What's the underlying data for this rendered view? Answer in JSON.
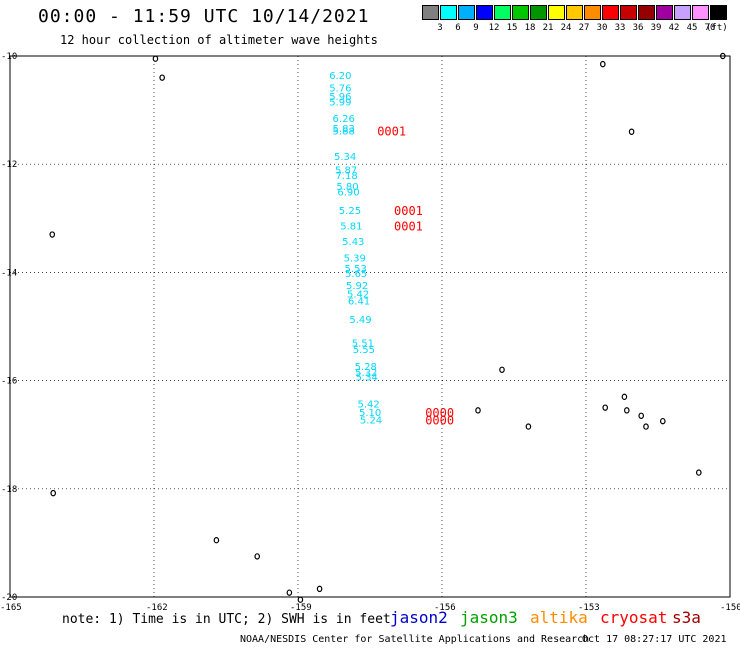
{
  "title": "00:00 - 11:59 UTC 10/14/2021",
  "subtitle": "12 hour collection of altimeter wave heights",
  "scale": {
    "unit": "(ft)",
    "colors": [
      "#808080",
      "#00ffff",
      "#00b0ff",
      "#0000ff",
      "#00ff60",
      "#00c800",
      "#009600",
      "#ffff00",
      "#ffc800",
      "#ff8c00",
      "#ff0000",
      "#c80000",
      "#960000",
      "#a000a0",
      "#c8a0ff",
      "#ff90ff",
      "#000000"
    ],
    "labels": [
      "3",
      "6",
      "9",
      "12",
      "15",
      "18",
      "21",
      "24",
      "27",
      "30",
      "33",
      "36",
      "39",
      "42",
      "45",
      "70"
    ]
  },
  "map": {
    "lon_range": [
      -165,
      -150
    ],
    "lat_range": [
      -20,
      -10
    ],
    "lat_ticks": [
      "-10",
      "-12",
      "-14",
      "-16",
      "-18",
      "-20"
    ],
    "lon_ticks": [
      "-165",
      "-162",
      "-159",
      "-156",
      "-153",
      "-150"
    ],
    "cyan_color": "#00d8ff",
    "red_color": "#ff0000",
    "observations": [
      {
        "v": "6.20",
        "lon": -158.35,
        "lat": -10.35
      },
      {
        "v": "5.76",
        "lon": -158.35,
        "lat": -10.58
      },
      {
        "v": "5.96",
        "lon": -158.35,
        "lat": -10.74
      },
      {
        "v": "5.99",
        "lon": -158.35,
        "lat": -10.84
      },
      {
        "v": "6.26",
        "lon": -158.28,
        "lat": -11.15
      },
      {
        "v": "5.83",
        "lon": -158.28,
        "lat": -11.33
      },
      {
        "v": "5.88",
        "lon": -158.28,
        "lat": -11.38
      },
      {
        "v": "5.34",
        "lon": -158.25,
        "lat": -11.85
      },
      {
        "v": "5.87",
        "lon": -158.23,
        "lat": -12.1
      },
      {
        "v": "7.18",
        "lon": -158.22,
        "lat": -12.2
      },
      {
        "v": "5.80",
        "lon": -158.2,
        "lat": -12.4
      },
      {
        "v": "6.90",
        "lon": -158.18,
        "lat": -12.5
      },
      {
        "v": "5.25",
        "lon": -158.15,
        "lat": -12.85
      },
      {
        "v": "5.81",
        "lon": -158.12,
        "lat": -13.13
      },
      {
        "v": "5.43",
        "lon": -158.08,
        "lat": -13.42
      },
      {
        "v": "5.39",
        "lon": -158.05,
        "lat": -13.72
      },
      {
        "v": "5.53",
        "lon": -158.03,
        "lat": -13.92
      },
      {
        "v": "5.65",
        "lon": -158.02,
        "lat": -14.01
      },
      {
        "v": "5.92",
        "lon": -158.0,
        "lat": -14.23
      },
      {
        "v": "5.42",
        "lon": -157.98,
        "lat": -14.39
      },
      {
        "v": "6.41",
        "lon": -157.96,
        "lat": -14.52
      },
      {
        "v": "5.49",
        "lon": -157.93,
        "lat": -14.86
      },
      {
        "v": "5.51",
        "lon": -157.88,
        "lat": -15.3
      },
      {
        "v": "5.55",
        "lon": -157.86,
        "lat": -15.42
      },
      {
        "v": "5.28",
        "lon": -157.82,
        "lat": -15.73
      },
      {
        "v": "5.32",
        "lon": -157.81,
        "lat": -15.84
      },
      {
        "v": "5.34",
        "lon": -157.8,
        "lat": -15.92
      },
      {
        "v": "5.42",
        "lon": -157.76,
        "lat": -16.42
      },
      {
        "v": "5.10",
        "lon": -157.73,
        "lat": -16.58
      },
      {
        "v": "5.24",
        "lon": -157.71,
        "lat": -16.72
      }
    ],
    "flags": [
      {
        "v": "0001",
        "lon": -157.35,
        "lat": -11.38
      },
      {
        "v": "0001",
        "lon": -157.0,
        "lat": -12.85
      },
      {
        "v": "0001",
        "lon": -157.0,
        "lat": -13.13
      },
      {
        "v": "0000",
        "lon": -156.35,
        "lat": -16.58
      },
      {
        "v": "0000",
        "lon": -156.35,
        "lat": -16.72
      }
    ],
    "islands": [
      {
        "lon": -161.97,
        "lat": -10.05
      },
      {
        "lon": -161.83,
        "lat": -10.4
      },
      {
        "lon": -164.12,
        "lat": -13.3
      },
      {
        "lon": -164.1,
        "lat": -18.08
      },
      {
        "lon": -160.7,
        "lat": -18.95
      },
      {
        "lon": -159.85,
        "lat": -19.25
      },
      {
        "lon": -159.18,
        "lat": -19.92
      },
      {
        "lon": -158.95,
        "lat": -20.05
      },
      {
        "lon": -158.55,
        "lat": -19.85
      },
      {
        "lon": -154.75,
        "lat": -15.8
      },
      {
        "lon": -155.25,
        "lat": -16.55
      },
      {
        "lon": -154.2,
        "lat": -16.85
      },
      {
        "lon": -152.65,
        "lat": -10.15
      },
      {
        "lon": -152.05,
        "lat": -11.4
      },
      {
        "lon": -152.2,
        "lat": -16.3
      },
      {
        "lon": -152.6,
        "lat": -16.5
      },
      {
        "lon": -152.15,
        "lat": -16.55
      },
      {
        "lon": -151.85,
        "lat": -16.65
      },
      {
        "lon": -151.75,
        "lat": -16.85
      },
      {
        "lon": -151.4,
        "lat": -16.75
      },
      {
        "lon": -150.65,
        "lat": -17.7
      },
      {
        "lon": -150.15,
        "lat": -10.0
      }
    ]
  },
  "note": "note: 1) Time is in UTC; 2) SWH is in feet",
  "legend": [
    {
      "name": "jason2",
      "color": "#0000cc"
    },
    {
      "name": "jason3",
      "color": "#00a000"
    },
    {
      "name": "altika",
      "color": "#ff8c00"
    },
    {
      "name": "cryosat",
      "color": "#ff0000"
    },
    {
      "name": "s3a",
      "color": "#a00000"
    }
  ],
  "credit": "NOAA/NESDIS Center for Satellite Applications and Research",
  "stamp": "Oct 17 08:27:17 UTC 2021"
}
